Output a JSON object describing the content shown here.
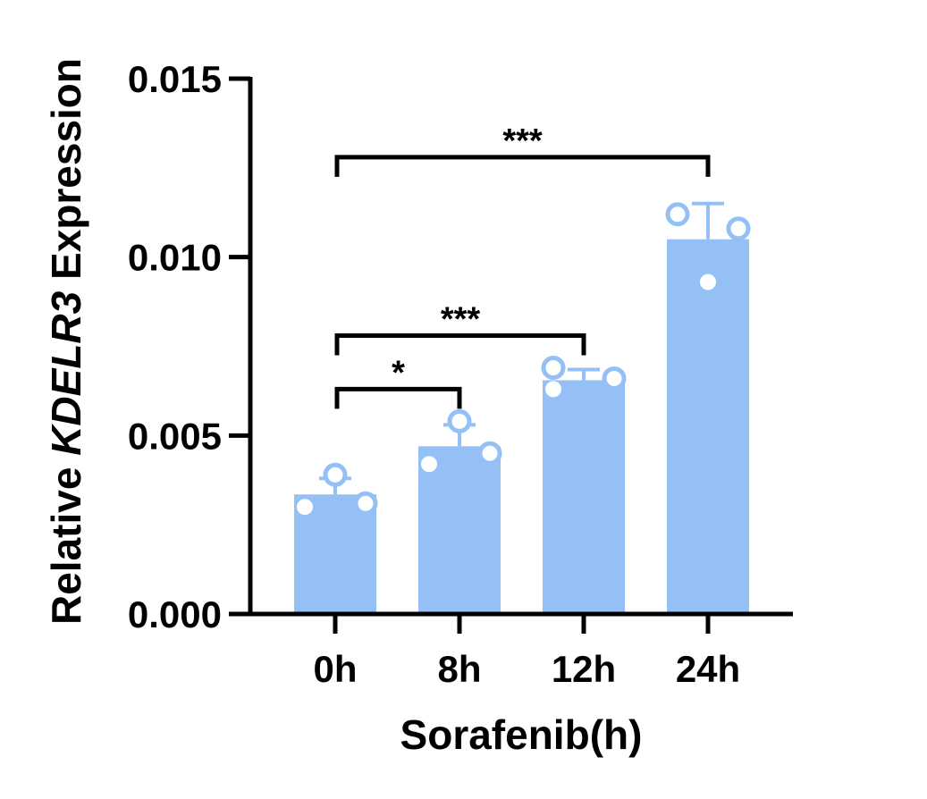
{
  "chart_data": {
    "type": "bar",
    "title": "",
    "xlabel": "Sorafenib(h)",
    "ylabel": {
      "prefix": "Relative ",
      "gene": "KDELR3",
      "suffix": " Expression"
    },
    "categories": [
      "0h",
      "8h",
      "12h",
      "24h"
    ],
    "values": [
      0.00335,
      0.0047,
      0.00655,
      0.0105
    ],
    "sd": [
      0.00045,
      0.0006,
      0.0003,
      0.001
    ],
    "points": [
      [
        0.0039,
        0.003,
        0.0031
      ],
      [
        0.0054,
        0.0042,
        0.0045
      ],
      [
        0.0069,
        0.0063,
        0.0066
      ],
      [
        0.0112,
        0.0093,
        0.0108
      ]
    ],
    "point_styles": [
      [
        "open",
        "filled",
        "open"
      ],
      [
        "open",
        "filled",
        "open"
      ],
      [
        "open",
        "filled",
        "open"
      ],
      [
        "open",
        "filled",
        "open"
      ]
    ],
    "ylim": [
      0,
      0.015
    ],
    "yticks": [
      0,
      0.005,
      0.01,
      0.015
    ],
    "ytick_labels": [
      "0.000",
      "0.005",
      "0.010",
      "0.015"
    ],
    "significance": [
      {
        "from": 0,
        "to": 1,
        "label": "*",
        "y": 0.0063
      },
      {
        "from": 0,
        "to": 2,
        "label": "***",
        "y": 0.0078
      },
      {
        "from": 0,
        "to": 3,
        "label": "***",
        "y": 0.0128
      }
    ],
    "grid": false,
    "legend": "none",
    "colors": {
      "bar": "#94c0f5",
      "axis": "#000000"
    }
  }
}
